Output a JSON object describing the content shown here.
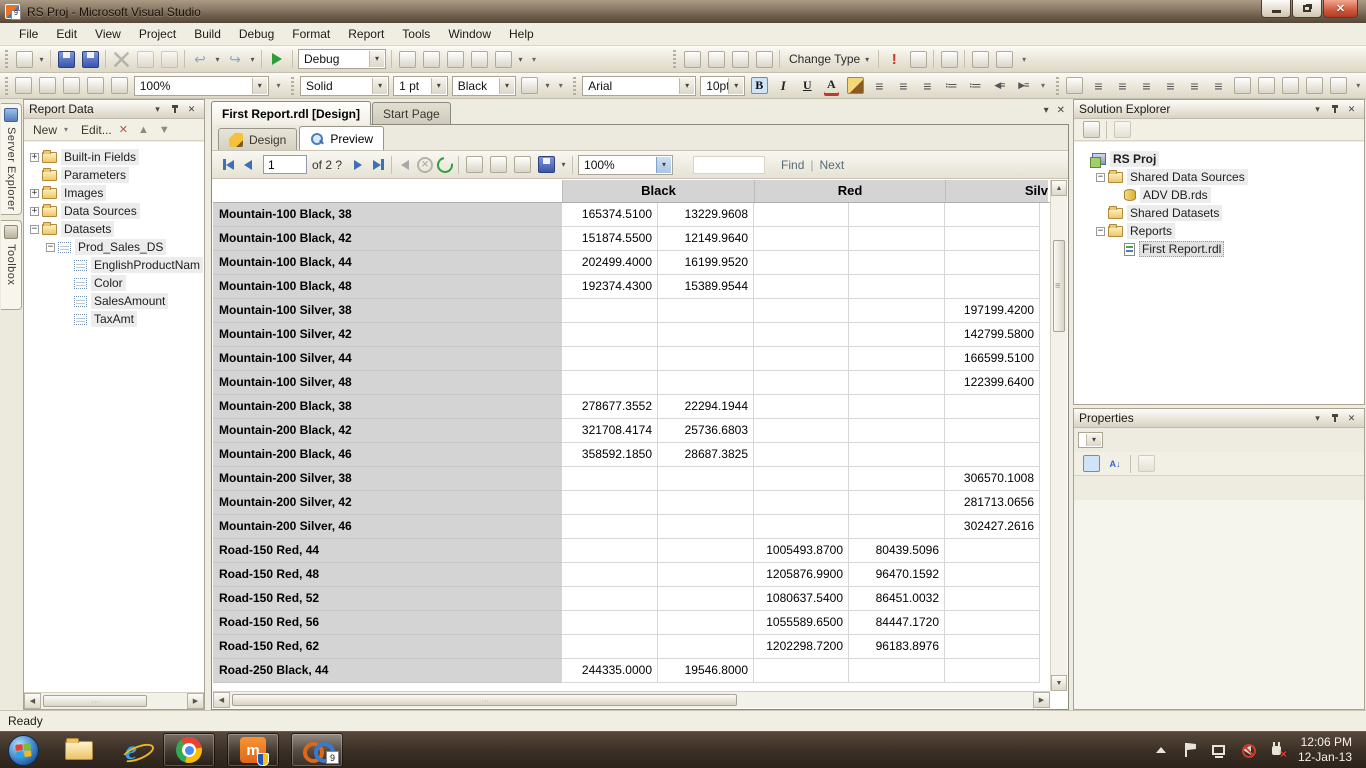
{
  "window": {
    "title": "RS Proj - Microsoft Visual Studio"
  },
  "menu": {
    "items": [
      "File",
      "Edit",
      "View",
      "Project",
      "Build",
      "Debug",
      "Format",
      "Report",
      "Tools",
      "Window",
      "Help"
    ]
  },
  "toolbar_standard": {
    "left_groups": [
      [
        "new-project",
        "new-project-dropdown"
      ],
      [
        "save",
        "save-all"
      ],
      [
        "cut",
        "copy",
        "paste"
      ],
      [
        "undo",
        "undo-dropdown",
        "redo",
        "redo-dropdown"
      ],
      [
        "start-debug"
      ]
    ],
    "debug_target": "Debug",
    "window_group": [
      "find-in-files",
      "properties-window",
      "external-tools",
      "navigate-forward",
      "command-window",
      "command-window-dropdown"
    ],
    "query_pane_group": [
      "show-diagram-pane",
      "show-grid-pane",
      "show-sql-pane",
      "show-results-pane"
    ],
    "change_type_label": "Change Type",
    "query_exec_group": [
      "execute-sql",
      "verify-sql"
    ],
    "query_group2": [
      "use-group-by"
    ],
    "query_group3": [
      "add-table",
      "add-derived-table"
    ]
  },
  "toolbar_report": {
    "designer_icons": [
      "page-header",
      "page-footer",
      "report-properties",
      "toggle-grouping-pane",
      "ruler"
    ],
    "zoom_value": "100%",
    "border_style": "Solid",
    "border_width": "1 pt",
    "border_color": "Black",
    "border_icons": [
      "border-style",
      "border-dropdown"
    ],
    "font_name": "Arial",
    "font_size": "10pt",
    "format_icons": [
      "bold",
      "italic",
      "underline",
      "font-color",
      "background-color",
      "align-left",
      "align-center",
      "align-right",
      "numbering",
      "bullets",
      "decrease-indent",
      "increase-indent"
    ],
    "layout_icons": [
      "snap-to-grid",
      "align-lefts",
      "align-centers",
      "align-rights",
      "align-tops",
      "align-middles",
      "align-bottoms",
      "make-same-width",
      "make-same-height",
      "make-same-size",
      "size-to-grid",
      "horizontal-spacing"
    ]
  },
  "left_tabs": [
    {
      "label": "Server Explorer",
      "icon": "server-explorer"
    },
    {
      "label": "Toolbox",
      "icon": "toolbox"
    }
  ],
  "report_data": {
    "title": "Report Data",
    "new_label": "New",
    "edit_label": "Edit...",
    "tree": [
      {
        "label": "Built-in Fields",
        "icon": "folder",
        "expander": "+",
        "level": 0
      },
      {
        "label": "Parameters",
        "icon": "folder",
        "expander": "",
        "level": 0
      },
      {
        "label": "Images",
        "icon": "folder",
        "expander": "+",
        "level": 0
      },
      {
        "label": "Data Sources",
        "icon": "folder",
        "expander": "+",
        "level": 0
      },
      {
        "label": "Datasets",
        "icon": "folder",
        "expander": "-",
        "level": 0
      },
      {
        "label": "Prod_Sales_DS",
        "icon": "dataset",
        "expander": "-",
        "level": 1
      },
      {
        "label": "EnglishProductNam",
        "icon": "field",
        "expander": "",
        "level": 2
      },
      {
        "label": "Color",
        "icon": "field",
        "expander": "",
        "level": 2
      },
      {
        "label": "SalesAmount",
        "icon": "field",
        "expander": "",
        "level": 2
      },
      {
        "label": "TaxAmt",
        "icon": "field",
        "expander": "",
        "level": 2
      }
    ]
  },
  "document": {
    "tabs": [
      {
        "label": "First Report.rdl [Design]",
        "active": true
      },
      {
        "label": "Start Page",
        "active": false
      }
    ],
    "view_tabs": [
      {
        "label": "Design",
        "active": false
      },
      {
        "label": "Preview",
        "active": true
      }
    ],
    "preview_toolbar": {
      "page_current": "1",
      "page_of_label": "of 2 ?",
      "zoom_value": "100%",
      "find_label": "Find",
      "next_label": "Next"
    }
  },
  "report_table": {
    "column_groups": [
      "Black",
      "Red",
      "Silv"
    ],
    "rows": [
      {
        "label": "Mountain-100 Black, 38",
        "cells": [
          "165374.5100",
          "13229.9608",
          "",
          "",
          ""
        ]
      },
      {
        "label": "Mountain-100 Black, 42",
        "cells": [
          "151874.5500",
          "12149.9640",
          "",
          "",
          ""
        ]
      },
      {
        "label": "Mountain-100 Black, 44",
        "cells": [
          "202499.4000",
          "16199.9520",
          "",
          "",
          ""
        ]
      },
      {
        "label": "Mountain-100 Black, 48",
        "cells": [
          "192374.4300",
          "15389.9544",
          "",
          "",
          ""
        ]
      },
      {
        "label": "Mountain-100 Silver, 38",
        "cells": [
          "",
          "",
          "",
          "",
          "197199.4200"
        ]
      },
      {
        "label": "Mountain-100 Silver, 42",
        "cells": [
          "",
          "",
          "",
          "",
          "142799.5800"
        ]
      },
      {
        "label": "Mountain-100 Silver, 44",
        "cells": [
          "",
          "",
          "",
          "",
          "166599.5100"
        ]
      },
      {
        "label": "Mountain-100 Silver, 48",
        "cells": [
          "",
          "",
          "",
          "",
          "122399.6400"
        ]
      },
      {
        "label": "Mountain-200 Black, 38",
        "cells": [
          "278677.3552",
          "22294.1944",
          "",
          "",
          ""
        ]
      },
      {
        "label": "Mountain-200 Black, 42",
        "cells": [
          "321708.4174",
          "25736.6803",
          "",
          "",
          ""
        ]
      },
      {
        "label": "Mountain-200 Black, 46",
        "cells": [
          "358592.1850",
          "28687.3825",
          "",
          "",
          ""
        ]
      },
      {
        "label": "Mountain-200 Silver, 38",
        "cells": [
          "",
          "",
          "",
          "",
          "306570.1008"
        ]
      },
      {
        "label": "Mountain-200 Silver, 42",
        "cells": [
          "",
          "",
          "",
          "",
          "281713.0656"
        ]
      },
      {
        "label": "Mountain-200 Silver, 46",
        "cells": [
          "",
          "",
          "",
          "",
          "302427.2616"
        ]
      },
      {
        "label": "Road-150 Red, 44",
        "cells": [
          "",
          "",
          "1005493.8700",
          "80439.5096",
          ""
        ]
      },
      {
        "label": "Road-150 Red, 48",
        "cells": [
          "",
          "",
          "1205876.9900",
          "96470.1592",
          ""
        ]
      },
      {
        "label": "Road-150 Red, 52",
        "cells": [
          "",
          "",
          "1080637.5400",
          "86451.0032",
          ""
        ]
      },
      {
        "label": "Road-150 Red, 56",
        "cells": [
          "",
          "",
          "1055589.6500",
          "84447.1720",
          ""
        ]
      },
      {
        "label": "Road-150 Red, 62",
        "cells": [
          "",
          "",
          "1202298.7200",
          "96183.8976",
          ""
        ]
      },
      {
        "label": "Road-250 Black, 44",
        "cells": [
          "244335.0000",
          "19546.8000",
          "",
          "",
          ""
        ]
      }
    ]
  },
  "solution_explorer": {
    "title": "Solution Explorer",
    "tree": [
      {
        "label": "RS Proj",
        "icon": "project",
        "expander": "",
        "level": 0,
        "bold": true
      },
      {
        "label": "Shared Data Sources",
        "icon": "folder",
        "expander": "-",
        "level": 1
      },
      {
        "label": "ADV DB.rds",
        "icon": "data-source",
        "expander": "",
        "level": 2
      },
      {
        "label": "Shared Datasets",
        "icon": "folder",
        "expander": "",
        "level": 1
      },
      {
        "label": "Reports",
        "icon": "folder",
        "expander": "-",
        "level": 1
      },
      {
        "label": "First Report.rdl",
        "icon": "report",
        "expander": "",
        "level": 2,
        "selected": true
      }
    ]
  },
  "properties": {
    "title": "Properties",
    "selector_value": ""
  },
  "status_bar": {
    "text": "Ready"
  },
  "taskbar": {
    "items": [
      {
        "name": "start",
        "running": false,
        "active": false,
        "badge": ""
      },
      {
        "name": "windows-explorer",
        "running": false,
        "active": false,
        "badge": ""
      },
      {
        "name": "internet-explorer",
        "running": false,
        "active": false,
        "badge": ""
      },
      {
        "name": "chrome",
        "running": true,
        "active": false,
        "badge": ""
      },
      {
        "name": "security-app",
        "running": true,
        "active": false,
        "badge": ""
      },
      {
        "name": "visual-studio",
        "running": true,
        "active": true,
        "badge": "9"
      }
    ],
    "tray_icons": [
      "show-hidden-icons",
      "action-center",
      "network",
      "volume-muted",
      "power-alert"
    ],
    "clock": {
      "time": "12:06 PM",
      "date": "12-Jan-13"
    }
  },
  "colors": {
    "taskbar_brown": "#3a2f25",
    "selection_blue": "#cfe4f7",
    "table_header_gray": "#d4d4d4",
    "close_button_red": "#b13c26"
  }
}
